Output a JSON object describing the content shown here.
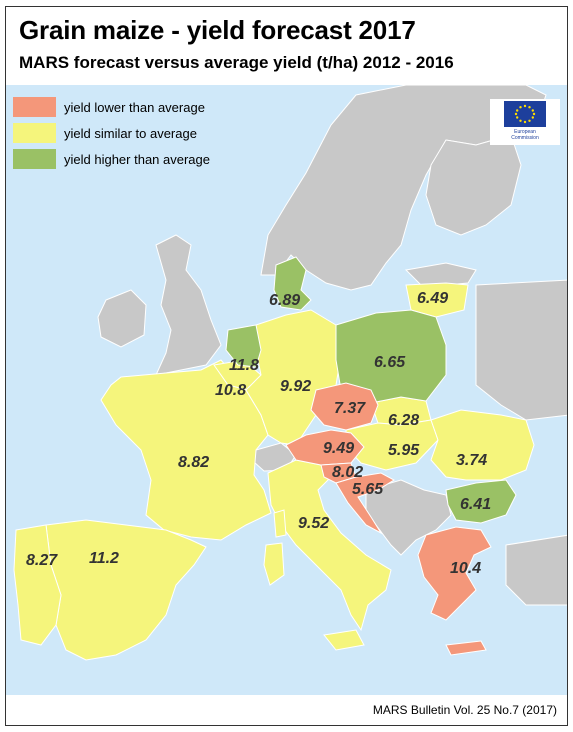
{
  "title": "Grain maize - yield forecast 2017",
  "subtitle": "MARS forecast versus average yield (t/ha) 2012 - 2016",
  "legend": [
    {
      "label": "yield lower than average",
      "color": "#f4977a"
    },
    {
      "label": "yield similar to average",
      "color": "#f5f57c"
    },
    {
      "label": "yield higher than average",
      "color": "#9ac165"
    }
  ],
  "logo": {
    "text": "European Commission",
    "icon": "eu-flag"
  },
  "source": "MARS Bulletin Vol. 25 No.7 (2017)",
  "colors": {
    "sea": "#cfe8f9",
    "non_eu_land": "#c8c8c8",
    "lower": "#f4977a",
    "similar": "#f5f57c",
    "higher": "#9ac165"
  },
  "regions": {
    "denmark": {
      "value": "6.89",
      "category": "higher"
    },
    "lithuania": {
      "value": "6.49",
      "category": "similar"
    },
    "poland": {
      "value": "6.65",
      "category": "higher"
    },
    "netherlands": {
      "value": "11.8",
      "category": "higher"
    },
    "belgium": {
      "value": "10.8",
      "category": "similar"
    },
    "germany": {
      "value": "9.92",
      "category": "similar"
    },
    "czechia": {
      "value": "7.37",
      "category": "lower"
    },
    "slovakia": {
      "value": "6.28",
      "category": "similar"
    },
    "austria": {
      "value": "9.49",
      "category": "lower"
    },
    "hungary": {
      "value": "5.95",
      "category": "similar"
    },
    "romania": {
      "value": "3.74",
      "category": "similar"
    },
    "france": {
      "value": "8.82",
      "category": "similar"
    },
    "slovenia": {
      "value": "8.02",
      "category": "lower"
    },
    "croatia": {
      "value": "5.65",
      "category": "lower"
    },
    "bulgaria": {
      "value": "6.41",
      "category": "higher"
    },
    "italy": {
      "value": "9.52",
      "category": "similar"
    },
    "greece": {
      "value": "10.4",
      "category": "lower"
    },
    "portugal": {
      "value": "8.27",
      "category": "similar"
    },
    "spain": {
      "value": "11.2",
      "category": "similar"
    }
  }
}
